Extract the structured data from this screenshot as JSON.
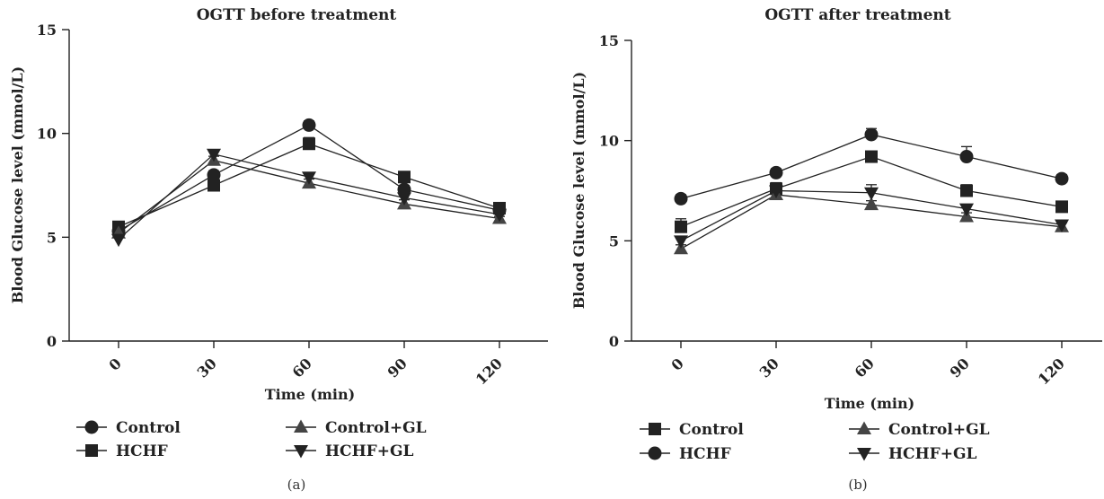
{
  "chart_data": [
    {
      "type": "line",
      "title": "OGTT before treatment",
      "xlabel": "Time (min)",
      "ylabel": "Blood Glucose level (mmol/L)",
      "x": [
        0,
        30,
        60,
        90,
        120
      ],
      "x_tick_labels": [
        "0",
        "30",
        "60",
        "90",
        "120"
      ],
      "y_tick_labels": [
        "0",
        "5",
        "10",
        "15"
      ],
      "ylim": [
        0,
        15
      ],
      "panel_label": "(a)",
      "legend_placement": "bottom",
      "series": [
        {
          "name": "Control",
          "marker": "circle",
          "values": [
            5.3,
            8.0,
            10.4,
            7.3,
            6.3
          ],
          "errors": [
            0.2,
            0.2,
            0.2,
            0.2,
            0.2
          ]
        },
        {
          "name": "HCHF",
          "marker": "square",
          "values": [
            5.5,
            7.5,
            9.5,
            7.9,
            6.4
          ],
          "errors": [
            0.2,
            0.2,
            0.3,
            0.2,
            0.2
          ]
        },
        {
          "name": "Control+GL",
          "marker": "triangle-up",
          "values": [
            5.2,
            8.7,
            7.6,
            6.6,
            5.9
          ],
          "errors": [
            0.2,
            0.2,
            0.2,
            0.2,
            0.1
          ]
        },
        {
          "name": "HCHF+GL",
          "marker": "triangle-down",
          "values": [
            4.9,
            9.0,
            7.9,
            6.9,
            6.1
          ],
          "errors": [
            0.2,
            0.2,
            0.2,
            0.2,
            0.1
          ]
        }
      ]
    },
    {
      "type": "line",
      "title": "OGTT after treatment",
      "xlabel": "Time (min)",
      "ylabel": "Blood Glucose level (mmol/L)",
      "x": [
        0,
        30,
        60,
        90,
        120
      ],
      "x_tick_labels": [
        "0",
        "30",
        "60",
        "90",
        "120"
      ],
      "y_tick_labels": [
        "0",
        "5",
        "10",
        "15"
      ],
      "ylim": [
        0,
        15
      ],
      "panel_label": "(b)",
      "legend_placement": "bottom",
      "series": [
        {
          "name": "Control",
          "marker": "square",
          "values": [
            5.7,
            7.6,
            9.2,
            7.5,
            6.7
          ],
          "errors": [
            0.4,
            0.3,
            0.2,
            0.3,
            0.2
          ]
        },
        {
          "name": "HCHF",
          "marker": "circle",
          "values": [
            7.1,
            8.4,
            10.3,
            9.2,
            8.1
          ],
          "errors": [
            0.2,
            0.2,
            0.3,
            0.5,
            0.2
          ]
        },
        {
          "name": "Control+GL",
          "marker": "triangle-up",
          "values": [
            4.6,
            7.3,
            6.8,
            6.2,
            5.7
          ],
          "errors": [
            0.2,
            0.3,
            0.2,
            0.2,
            0.2
          ]
        },
        {
          "name": "HCHF+GL",
          "marker": "triangle-down",
          "values": [
            5.0,
            7.5,
            7.4,
            6.6,
            5.8
          ],
          "errors": [
            0.2,
            0.3,
            0.4,
            0.2,
            0.2
          ]
        }
      ]
    }
  ]
}
